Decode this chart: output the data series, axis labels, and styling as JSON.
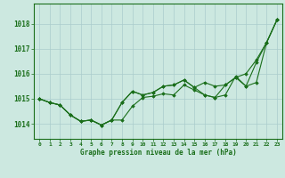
{
  "background_color": "#cce8e0",
  "grid_color": "#aacccc",
  "line_color": "#1a6e1a",
  "xlabel": "Graphe pression niveau de la mer (hPa)",
  "xlim": [
    -0.5,
    23.5
  ],
  "ylim": [
    1013.4,
    1018.8
  ],
  "yticks": [
    1014,
    1015,
    1016,
    1017,
    1018
  ],
  "xticks": [
    0,
    1,
    2,
    3,
    4,
    5,
    6,
    7,
    8,
    9,
    10,
    11,
    12,
    13,
    14,
    15,
    16,
    17,
    18,
    19,
    20,
    21,
    22,
    23
  ],
  "series": [
    [
      1015.0,
      1014.85,
      1014.75,
      1014.35,
      1014.1,
      1014.15,
      1013.95,
      1014.15,
      1014.15,
      1014.7,
      1015.05,
      1015.1,
      1015.2,
      1015.15,
      1015.55,
      1015.35,
      1015.15,
      1015.05,
      1015.15,
      1015.9,
      1015.5,
      1015.65,
      1017.25,
      1018.15
    ],
    [
      1015.0,
      1014.85,
      1014.75,
      1014.35,
      1014.1,
      1014.15,
      1013.95,
      1014.15,
      1014.85,
      1015.3,
      1015.15,
      1015.25,
      1015.5,
      1015.55,
      1015.75,
      1015.45,
      1015.15,
      1015.05,
      1015.55,
      1015.85,
      1015.5,
      1016.45,
      1017.25,
      1018.15
    ],
    [
      1015.0,
      1014.85,
      1014.75,
      1014.35,
      1014.1,
      1014.15,
      1013.95,
      1014.15,
      1014.85,
      1015.3,
      1015.15,
      1015.25,
      1015.5,
      1015.55,
      1015.75,
      1015.45,
      1015.65,
      1015.5,
      1015.55,
      1015.85,
      1016.0,
      1016.55,
      1017.25,
      1018.15
    ]
  ],
  "figsize": [
    3.2,
    2.0
  ],
  "dpi": 100
}
